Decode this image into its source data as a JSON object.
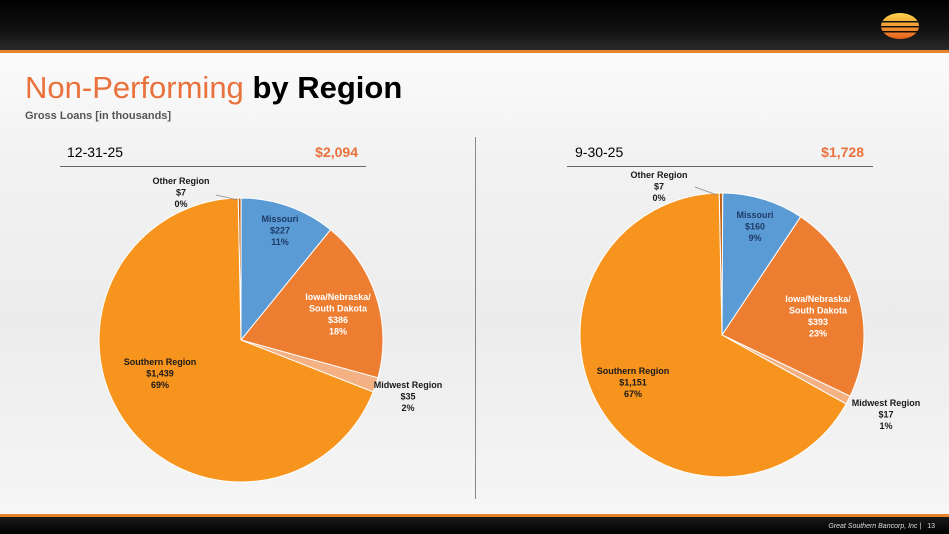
{
  "header": {
    "title_part1": "Non-Performing",
    "title_part2": "by Region",
    "subtitle": "Gross Loans [in thousands]"
  },
  "footer": {
    "company": "Great Southern Bancorp, Inc |",
    "page": "13"
  },
  "colors": {
    "accent": "#e8713c",
    "missouri": "#5b9bd5",
    "iowa": "#ed7d31",
    "midwest": "#f4b183",
    "southern": "#f7941d",
    "other": "#c0651a"
  },
  "chart_data": [
    {
      "type": "pie",
      "date": "12-31-25",
      "total": "$2,094",
      "slices": [
        {
          "name": "Other Region",
          "value": 7,
          "amount": "$7",
          "pct": "0%"
        },
        {
          "name": "Missouri",
          "value": 227,
          "amount": "$227",
          "pct": "11%"
        },
        {
          "name": "Iowa/Nebraska/ South Dakota",
          "value": 386,
          "amount": "$386",
          "pct": "18%"
        },
        {
          "name": "Midwest Region",
          "value": 35,
          "amount": "$35",
          "pct": "2%"
        },
        {
          "name": "Southern Region",
          "value": 1439,
          "amount": "$1,439",
          "pct": "69%"
        }
      ]
    },
    {
      "type": "pie",
      "date": "9-30-25",
      "total": "$1,728",
      "slices": [
        {
          "name": "Other Region",
          "value": 7,
          "amount": "$7",
          "pct": "0%"
        },
        {
          "name": "Missouri",
          "value": 160,
          "amount": "$160",
          "pct": "9%"
        },
        {
          "name": "Iowa/Nebraska/ South Dakota",
          "value": 393,
          "amount": "$393",
          "pct": "23%"
        },
        {
          "name": "Midwest Region",
          "value": 17,
          "amount": "$17",
          "pct": "1%"
        },
        {
          "name": "Southern Region",
          "value": 1151,
          "amount": "$1,151",
          "pct": "67%"
        }
      ]
    }
  ]
}
